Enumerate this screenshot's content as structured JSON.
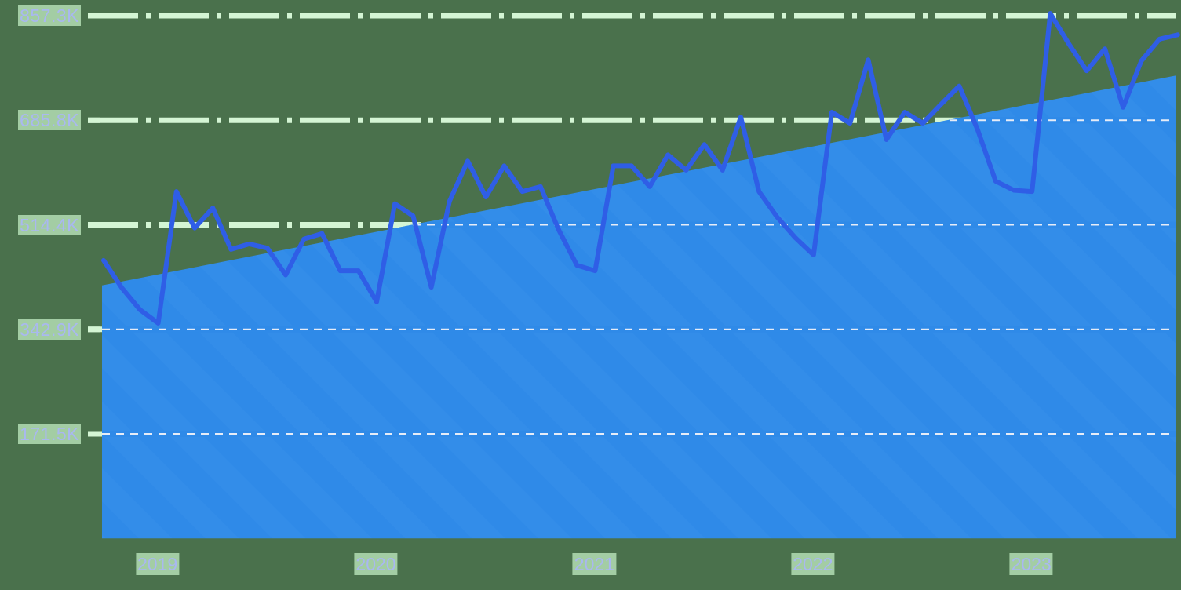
{
  "chart_data": {
    "type": "line",
    "title": "",
    "xlabel": "",
    "ylabel": "",
    "ylim": [
      0,
      857300
    ],
    "y_ticks": [
      {
        "value": 171500,
        "label": "171.5K"
      },
      {
        "value": 342900,
        "label": "342.9K"
      },
      {
        "value": 514400,
        "label": "514.4K"
      },
      {
        "value": 685800,
        "label": "685.8K"
      },
      {
        "value": 857300,
        "label": "857.3K"
      }
    ],
    "x_ticks": [
      {
        "month_index": 3,
        "label": "2019"
      },
      {
        "month_index": 15,
        "label": "2020"
      },
      {
        "month_index": 27,
        "label": "2021"
      },
      {
        "month_index": 39,
        "label": "2022"
      },
      {
        "month_index": 51,
        "label": "2023"
      }
    ],
    "x_start": "2018-10",
    "x_end": "2023-09",
    "grid": true,
    "legend": null,
    "series": [
      {
        "name": "value",
        "kind": "line",
        "color": "#2f5ee6",
        "x": [
          "2018-10",
          "2018-11",
          "2018-12",
          "2019-01",
          "2019-02",
          "2019-03",
          "2019-04",
          "2019-05",
          "2019-06",
          "2019-07",
          "2019-08",
          "2019-09",
          "2019-10",
          "2019-11",
          "2019-12",
          "2020-01",
          "2020-02",
          "2020-03",
          "2020-04",
          "2020-05",
          "2020-06",
          "2020-07",
          "2020-08",
          "2020-09",
          "2020-10",
          "2020-11",
          "2020-12",
          "2021-01",
          "2021-02",
          "2021-03",
          "2021-04",
          "2021-05",
          "2021-06",
          "2021-07",
          "2021-08",
          "2021-09",
          "2021-10",
          "2021-11",
          "2021-12",
          "2022-01",
          "2022-02",
          "2022-03",
          "2022-04",
          "2022-05",
          "2022-06",
          "2022-07",
          "2022-08",
          "2022-09",
          "2022-10",
          "2022-11",
          "2022-12",
          "2023-01",
          "2023-02",
          "2023-03",
          "2023-04",
          "2023-05",
          "2023-06",
          "2023-07",
          "2023-08",
          "2023-09"
        ],
        "values": [
          456000,
          411000,
          375000,
          353000,
          569000,
          509000,
          542000,
          474000,
          483000,
          476000,
          432000,
          491000,
          500000,
          439000,
          439000,
          388000,
          549000,
          529000,
          412000,
          553000,
          619000,
          560000,
          611000,
          569000,
          577000,
          506000,
          448000,
          439000,
          611000,
          611000,
          577000,
          629000,
          604000,
          646000,
          604000,
          691000,
          569000,
          527000,
          493000,
          465000,
          699000,
          681000,
          785000,
          654000,
          699000,
          681000,
          712000,
          742000,
          671000,
          586000,
          571000,
          569000,
          861000,
          812000,
          767000,
          803000,
          707000,
          783000,
          819000,
          826000
        ]
      },
      {
        "name": "trend",
        "kind": "area",
        "color": "#2f8ae8",
        "start_value": 415000,
        "end_value": 759000
      }
    ]
  },
  "colors": {
    "background": "#4a714c",
    "area_fill": "#2f8ae8",
    "line": "#2f5ee6",
    "grid_above": "#d4f5d4",
    "grid_inside": "#e6ecf7",
    "tick_label_text": "#a9b8f0",
    "tick_label_bg": "#a3cda4"
  }
}
